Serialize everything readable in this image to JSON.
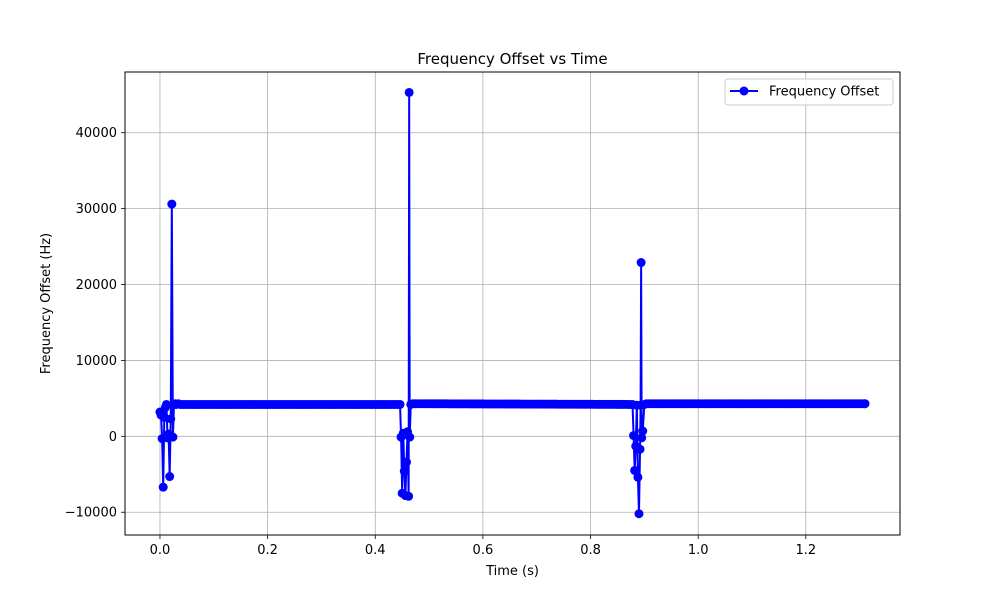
{
  "chart_data": {
    "type": "line",
    "title": "Frequency Offset vs Time",
    "xlabel": "Time (s)",
    "ylabel": "Frequency Offset (Hz)",
    "xlim": [
      -0.065,
      1.375
    ],
    "ylim": [
      -13000,
      48000
    ],
    "xticks": [
      0.0,
      0.2,
      0.4,
      0.6,
      0.8,
      1.0,
      1.2
    ],
    "xtick_labels": [
      "0.0",
      "0.2",
      "0.4",
      "0.6",
      "0.8",
      "1.0",
      "1.2"
    ],
    "yticks": [
      -10000,
      0,
      10000,
      20000,
      30000,
      40000
    ],
    "ytick_labels": [
      "−10000",
      "0",
      "10000",
      "20000",
      "30000",
      "40000"
    ],
    "grid": true,
    "legend": {
      "position": "top-right"
    },
    "series": [
      {
        "name": "Frequency Offset",
        "color": "#0000ff",
        "marker": "circle",
        "points": [
          [
            0.0,
            3200
          ],
          [
            0.002,
            2800
          ],
          [
            0.004,
            -300
          ],
          [
            0.006,
            -6700
          ],
          [
            0.008,
            2500
          ],
          [
            0.01,
            3800
          ],
          [
            0.012,
            4200
          ],
          [
            0.014,
            -200
          ],
          [
            0.016,
            300
          ],
          [
            0.018,
            -5300
          ],
          [
            0.02,
            2300
          ],
          [
            0.022,
            30600
          ],
          [
            0.024,
            -100
          ],
          [
            0.026,
            4200
          ],
          [
            0.028,
            4300
          ],
          [
            0.03,
            4200
          ],
          [
            0.034,
            4300
          ],
          [
            0.038,
            4200
          ],
          [
            0.446,
            4200
          ],
          [
            0.448,
            -100
          ],
          [
            0.45,
            -7500
          ],
          [
            0.452,
            400
          ],
          [
            0.454,
            -4600
          ],
          [
            0.456,
            -7800
          ],
          [
            0.458,
            -3400
          ],
          [
            0.46,
            600
          ],
          [
            0.462,
            -7900
          ],
          [
            0.463,
            45300
          ],
          [
            0.464,
            -100
          ],
          [
            0.466,
            4200
          ],
          [
            0.47,
            4300
          ],
          [
            0.878,
            4200
          ],
          [
            0.88,
            100
          ],
          [
            0.882,
            -4500
          ],
          [
            0.884,
            -1300
          ],
          [
            0.886,
            4100
          ],
          [
            0.888,
            -5400
          ],
          [
            0.89,
            -10200
          ],
          [
            0.892,
            -1700
          ],
          [
            0.893,
            4100
          ],
          [
            0.894,
            22900
          ],
          [
            0.895,
            -200
          ],
          [
            0.897,
            700
          ],
          [
            0.9,
            4200
          ],
          [
            0.904,
            4300
          ],
          [
            1.31,
            4300
          ]
        ]
      }
    ]
  }
}
